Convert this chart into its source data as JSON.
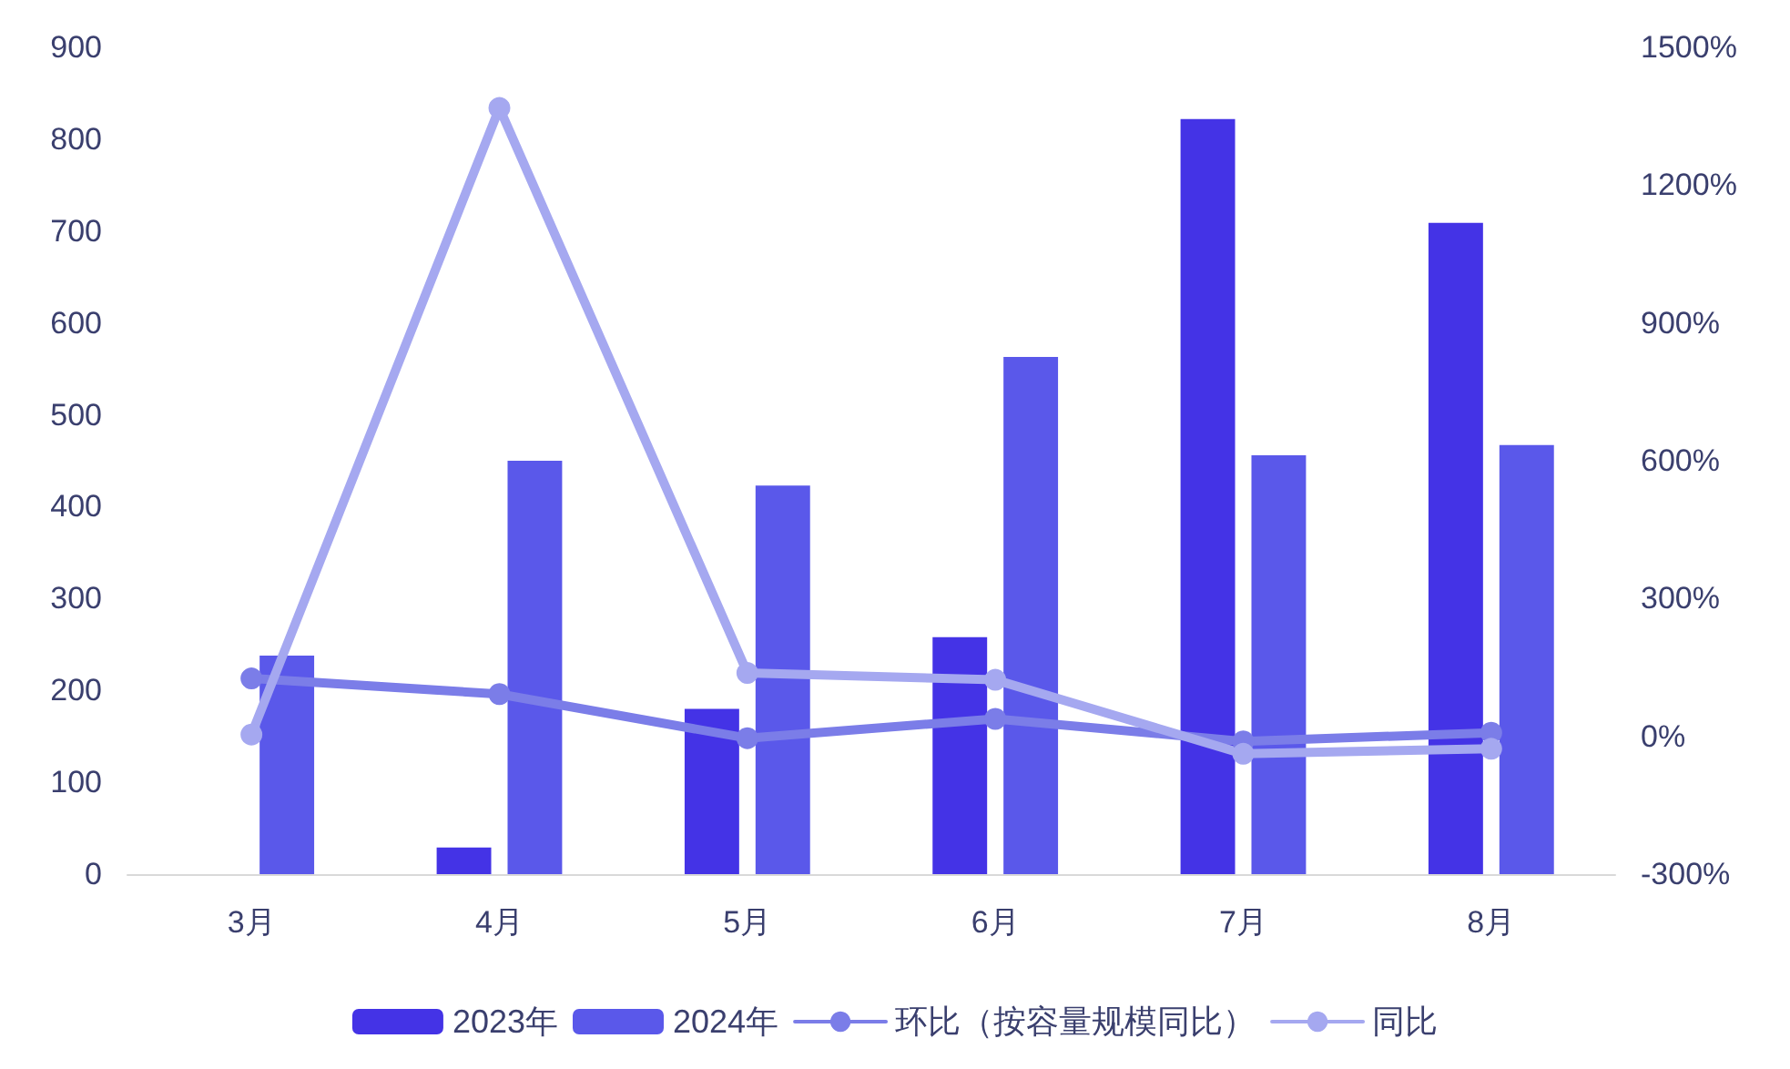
{
  "chart_data": {
    "type": "bar",
    "categories": [
      "3月",
      "4月",
      "5月",
      "6月",
      "7月",
      "8月"
    ],
    "series": [
      {
        "name": "2023年",
        "color": "#4433e6",
        "values": [
          null,
          29,
          180,
          258,
          822,
          709
        ]
      },
      {
        "name": "2024年",
        "color": "#5a58ea",
        "values": [
          238,
          450,
          423,
          563,
          456,
          467
        ]
      },
      {
        "name": "环比（按容量规模同比）",
        "type": "line",
        "axis": "y2",
        "color": "#7b7de8",
        "values": [
          126,
          92,
          -4,
          38,
          -11,
          8
        ]
      },
      {
        "name": "同比",
        "type": "line",
        "axis": "y2",
        "color": "#a5a8f0",
        "values": [
          4,
          1368,
          138,
          123,
          -38,
          -27
        ]
      }
    ],
    "ylim": [
      0,
      900
    ],
    "yticks": [
      0,
      100,
      200,
      300,
      400,
      500,
      600,
      700,
      800,
      900
    ],
    "y2lim": [
      -300,
      1500
    ],
    "y2ticks": [
      {
        "value": -300,
        "label": "-300%"
      },
      {
        "value": 0,
        "label": "0%"
      },
      {
        "value": 300,
        "label": "300%"
      },
      {
        "value": 600,
        "label": "600%"
      },
      {
        "value": 900,
        "label": "900%"
      },
      {
        "value": 1200,
        "label": "1200%"
      },
      {
        "value": 1500,
        "label": "1500%"
      }
    ],
    "grid": false,
    "legend": "bottom",
    "marker": "circle",
    "line_style": "solid"
  }
}
